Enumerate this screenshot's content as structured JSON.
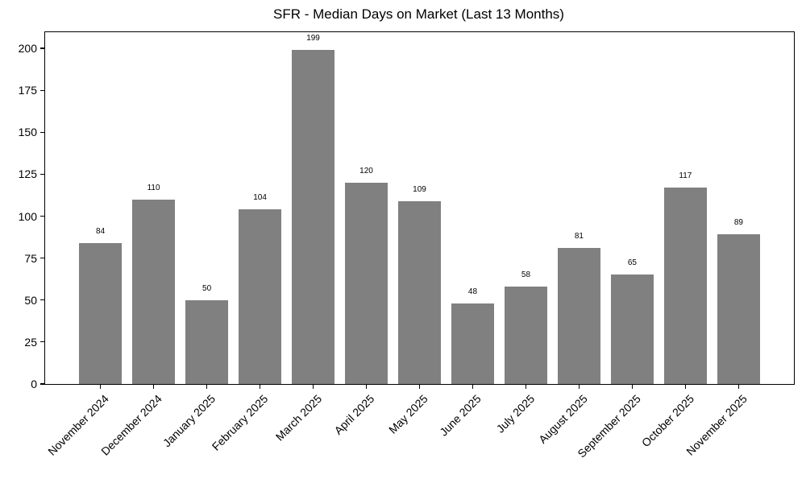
{
  "chart_data": {
    "type": "bar",
    "title": "SFR - Median Days on Market (Last 13 Months)",
    "categories": [
      "November 2024",
      "December 2024",
      "January 2025",
      "February 2025",
      "March 2025",
      "April 2025",
      "May 2025",
      "June 2025",
      "July 2025",
      "August 2025",
      "September 2025",
      "October 2025",
      "November 2025"
    ],
    "values": [
      84,
      110,
      50,
      104,
      199,
      120,
      109,
      48,
      58,
      81,
      65,
      117,
      89
    ],
    "bar_value_labels": [
      "84",
      "110",
      "50",
      "104",
      "199",
      "120",
      "109",
      "48",
      "58",
      "81",
      "65",
      "117",
      "89"
    ],
    "xlabel": "",
    "ylabel": "",
    "yticks": [
      0,
      25,
      50,
      75,
      100,
      125,
      150,
      175,
      200
    ],
    "ylim": [
      0,
      209.6
    ],
    "grid": "off",
    "legend": "none",
    "x_tick_rotation_deg": 45,
    "colors": {
      "bar": "#808080",
      "text": "#000000",
      "spine": "#000000",
      "background": "#ffffff"
    }
  }
}
